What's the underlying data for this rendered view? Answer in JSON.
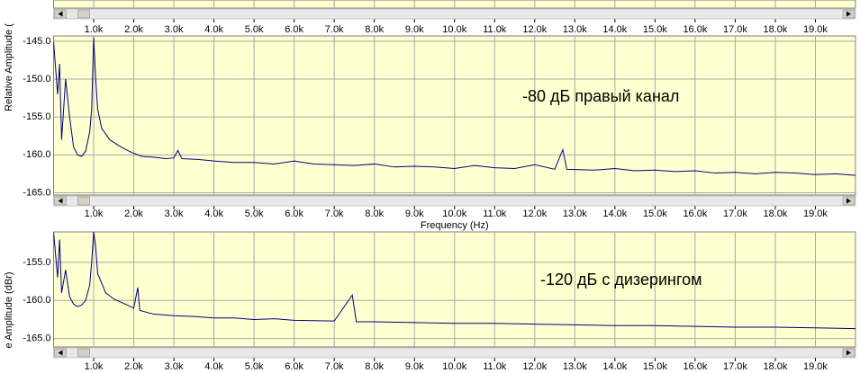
{
  "chart_data": [
    {
      "type": "axis-strip",
      "xlim": [
        0,
        20000
      ],
      "xticks": [
        {
          "value": 1000,
          "label": "1.0k"
        },
        {
          "value": 2000,
          "label": "2.0k"
        },
        {
          "value": 3000,
          "label": "3.0k"
        },
        {
          "value": 4000,
          "label": "4.0k"
        },
        {
          "value": 5000,
          "label": "5.0k"
        },
        {
          "value": 6000,
          "label": "6.0k"
        },
        {
          "value": 7000,
          "label": "7.0k"
        },
        {
          "value": 8000,
          "label": "8.0k"
        },
        {
          "value": 9000,
          "label": "9.0k"
        },
        {
          "value": 10000,
          "label": "10.0k"
        },
        {
          "value": 11000,
          "label": "11.0k"
        },
        {
          "value": 12000,
          "label": "12.0k"
        },
        {
          "value": 13000,
          "label": "13.0k"
        },
        {
          "value": 14000,
          "label": "14.0k"
        },
        {
          "value": 15000,
          "label": "15.0k"
        },
        {
          "value": 16000,
          "label": "16.0k"
        },
        {
          "value": 17000,
          "label": "17.0k"
        },
        {
          "value": 18000,
          "label": "18.0k"
        },
        {
          "value": 19000,
          "label": "19.0k"
        }
      ]
    },
    {
      "type": "line",
      "ylabel": "Relative Amplitude (",
      "xlabel": "Frequency (Hz)",
      "annotation": "-80 дБ правый канал",
      "xlim": [
        0,
        20000
      ],
      "ylim": [
        -165.3,
        -144.3
      ],
      "xticks": [
        {
          "value": 1000,
          "label": "1.0k"
        },
        {
          "value": 2000,
          "label": "2.0k"
        },
        {
          "value": 3000,
          "label": "3.0k"
        },
        {
          "value": 4000,
          "label": "4.0k"
        },
        {
          "value": 5000,
          "label": "5.0k"
        },
        {
          "value": 6000,
          "label": "6.0k"
        },
        {
          "value": 7000,
          "label": "7.0k"
        },
        {
          "value": 8000,
          "label": "8.0k"
        },
        {
          "value": 9000,
          "label": "9.0k"
        },
        {
          "value": 10000,
          "label": "10.0k"
        },
        {
          "value": 11000,
          "label": "11.0k"
        },
        {
          "value": 12000,
          "label": "12.0k"
        },
        {
          "value": 13000,
          "label": "13.0k"
        },
        {
          "value": 14000,
          "label": "14.0k"
        },
        {
          "value": 15000,
          "label": "15.0k"
        },
        {
          "value": 16000,
          "label": "16.0k"
        },
        {
          "value": 17000,
          "label": "17.0k"
        },
        {
          "value": 18000,
          "label": "18.0k"
        },
        {
          "value": 19000,
          "label": "19.0k"
        }
      ],
      "yticks": [
        {
          "value": -145,
          "label": "-145.0"
        },
        {
          "value": -150,
          "label": "-150.0"
        },
        {
          "value": -155,
          "label": "-155.0"
        },
        {
          "value": -160,
          "label": "-160.0"
        },
        {
          "value": -165,
          "label": "-165.0"
        }
      ],
      "grid": true,
      "x": [
        0,
        100,
        150,
        200,
        300,
        400,
        500,
        600,
        700,
        800,
        900,
        950,
        1000,
        1050,
        1100,
        1200,
        1400,
        1600,
        1800,
        2000,
        2200,
        2500,
        2800,
        3000,
        3100,
        3200,
        3600,
        4000,
        4500,
        5000,
        5500,
        6000,
        6500,
        7000,
        7500,
        8000,
        8500,
        9000,
        9500,
        10000,
        10500,
        11000,
        11500,
        12000,
        12500,
        12700,
        12800,
        13500,
        14000,
        14500,
        15000,
        15500,
        16000,
        16500,
        17000,
        17500,
        18000,
        18500,
        19000,
        19500,
        20000
      ],
      "series": [
        {
          "color": "#000080",
          "values": [
            -145,
            -152,
            -148,
            -158,
            -150,
            -155,
            -159,
            -160,
            -160.2,
            -159.5,
            -157,
            -154,
            -144.5,
            -150,
            -154,
            -156.5,
            -158,
            -158.7,
            -159.3,
            -159.8,
            -160.2,
            -160.3,
            -160.5,
            -160.4,
            -159.4,
            -160.5,
            -160.6,
            -160.8,
            -161,
            -161,
            -161.2,
            -160.8,
            -161.2,
            -161.3,
            -161.4,
            -161.2,
            -161.6,
            -161.5,
            -161.6,
            -161.8,
            -161.4,
            -161.7,
            -161.8,
            -161.3,
            -161.9,
            -159.3,
            -161.9,
            -162,
            -161.8,
            -162.1,
            -162,
            -162.2,
            -162.1,
            -162.4,
            -162.3,
            -162.5,
            -162.3,
            -162.4,
            -162.6,
            -162.5,
            -162.7
          ]
        }
      ]
    },
    {
      "type": "line",
      "ylabel": "e Amplitude (dBr)",
      "annotation": "-120 дБ с дизерингом",
      "xlim": [
        0,
        20000
      ],
      "ylim": [
        -166.1,
        -151
      ],
      "xticks": [
        {
          "value": 1000,
          "label": "1.0k"
        },
        {
          "value": 2000,
          "label": "2.0k"
        },
        {
          "value": 3000,
          "label": "3.0k"
        },
        {
          "value": 4000,
          "label": "4.0k"
        },
        {
          "value": 5000,
          "label": "5.0k"
        },
        {
          "value": 6000,
          "label": "6.0k"
        },
        {
          "value": 7000,
          "label": "7.0k"
        },
        {
          "value": 8000,
          "label": "8.0k"
        },
        {
          "value": 9000,
          "label": "9.0k"
        },
        {
          "value": 10000,
          "label": "10.0k"
        },
        {
          "value": 11000,
          "label": "11.0k"
        },
        {
          "value": 12000,
          "label": "12.0k"
        },
        {
          "value": 13000,
          "label": "13.0k"
        },
        {
          "value": 14000,
          "label": "14.0k"
        },
        {
          "value": 15000,
          "label": "15.0k"
        },
        {
          "value": 16000,
          "label": "16.0k"
        },
        {
          "value": 17000,
          "label": "17.0k"
        },
        {
          "value": 18000,
          "label": "18.0k"
        },
        {
          "value": 19000,
          "label": "19.0k"
        }
      ],
      "yticks": [
        {
          "value": -155,
          "label": "-155.0"
        },
        {
          "value": -160,
          "label": "-160.0"
        },
        {
          "value": -165,
          "label": "-165.0"
        }
      ],
      "grid": true,
      "x": [
        0,
        100,
        150,
        200,
        300,
        400,
        500,
        600,
        700,
        800,
        900,
        950,
        1000,
        1050,
        1100,
        1300,
        1500,
        1800,
        2000,
        2100,
        2150,
        2500,
        3000,
        3500,
        4000,
        4500,
        5000,
        5500,
        6000,
        7000,
        7450,
        7550,
        8000,
        9000,
        10000,
        11000,
        12000,
        13000,
        14000,
        15000,
        16000,
        17000,
        18000,
        19000,
        20000
      ],
      "series": [
        {
          "color": "#000080",
          "values": [
            -151,
            -157,
            -152,
            -159,
            -156,
            -159.5,
            -160.5,
            -160.8,
            -160.6,
            -160,
            -158,
            -155,
            -151,
            -153,
            -156.5,
            -159,
            -159.8,
            -160.5,
            -161,
            -158.3,
            -161.3,
            -161.8,
            -162,
            -162.1,
            -162.3,
            -162.3,
            -162.5,
            -162.4,
            -162.6,
            -162.7,
            -159.3,
            -162.8,
            -162.8,
            -162.9,
            -163,
            -163,
            -163.1,
            -163.2,
            -163.3,
            -163.3,
            -163.4,
            -163.5,
            -163.5,
            -163.6,
            -163.7
          ]
        }
      ]
    }
  ]
}
